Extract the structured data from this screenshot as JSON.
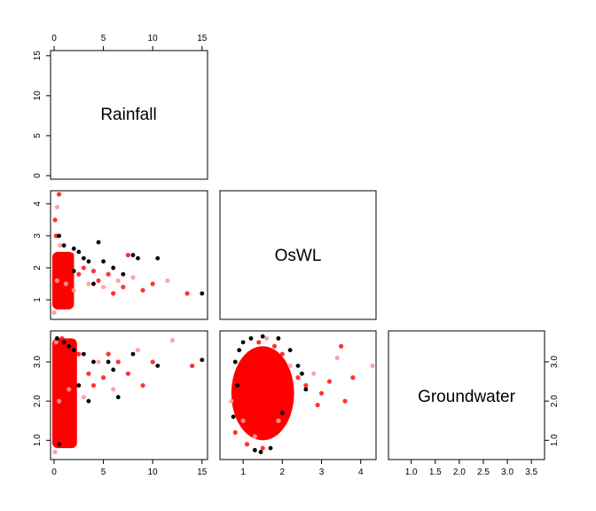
{
  "chart_data": {
    "type": "scatter",
    "kind": "pairs-plot",
    "variables": [
      "Rainfall",
      "OsWL",
      "Groundwater"
    ],
    "ranges": {
      "Rainfall": [
        0,
        15.2
      ],
      "OsWL": [
        0.5,
        4.3
      ],
      "Groundwater": [
        0.6,
        3.7
      ]
    },
    "ticks": {
      "Rainfall": [
        "0",
        "5",
        "10",
        "15"
      ],
      "OsWL": [
        "1",
        "2",
        "3",
        "4"
      ],
      "Groundwater": [
        "1.0",
        "2.0",
        "3.0"
      ],
      "GroundwaterBottom": [
        "1.0",
        "1.5",
        "2.0",
        "2.5",
        "3.0",
        "3.5"
      ]
    },
    "colors": {
      "main": "#ff0000",
      "light": "#ff9999",
      "dark": "#000000"
    },
    "panels": [
      {
        "x": "Rainfall",
        "y": "OsWL",
        "points": [
          [
            0.0,
            0.6
          ],
          [
            0.1,
            0.9
          ],
          [
            0.2,
            1.3
          ],
          [
            0.3,
            1.6
          ],
          [
            0.4,
            2.0
          ],
          [
            0.5,
            2.4
          ],
          [
            0.6,
            2.7
          ],
          [
            0.2,
            3.0
          ],
          [
            0.1,
            3.5
          ],
          [
            0.3,
            3.9
          ],
          [
            0.5,
            4.3
          ],
          [
            1.0,
            1.0
          ],
          [
            1.2,
            1.5
          ],
          [
            1.5,
            2.0
          ],
          [
            1.8,
            2.4
          ],
          [
            2.0,
            1.3
          ],
          [
            2.5,
            1.8
          ],
          [
            3.0,
            2.0
          ],
          [
            3.5,
            1.5
          ],
          [
            4.0,
            1.9
          ],
          [
            4.5,
            1.6
          ],
          [
            5.0,
            1.4
          ],
          [
            5.5,
            1.8
          ],
          [
            6.0,
            1.2
          ],
          [
            6.5,
            1.6
          ],
          [
            7.0,
            1.4
          ],
          [
            7.5,
            2.4
          ],
          [
            8.0,
            1.7
          ],
          [
            9.0,
            1.3
          ],
          [
            10.0,
            1.5
          ],
          [
            11.5,
            1.6
          ],
          [
            13.5,
            1.2
          ]
        ],
        "dark_points": [
          [
            0.5,
            3.0
          ],
          [
            1.0,
            2.7
          ],
          [
            2.0,
            2.6
          ],
          [
            2.5,
            2.5
          ],
          [
            3.0,
            2.3
          ],
          [
            4.5,
            2.8
          ],
          [
            3.5,
            2.2
          ],
          [
            5.0,
            2.2
          ],
          [
            6.0,
            2.0
          ],
          [
            7.0,
            1.8
          ],
          [
            8.0,
            2.4
          ],
          [
            8.5,
            2.3
          ],
          [
            10.5,
            2.3
          ],
          [
            15.0,
            1.2
          ],
          [
            2.0,
            1.9
          ],
          [
            4.0,
            1.5
          ]
        ]
      },
      {
        "x": "Rainfall",
        "y": "Groundwater",
        "points": [
          [
            0.1,
            0.7
          ],
          [
            0.2,
            1.0
          ],
          [
            0.3,
            1.5
          ],
          [
            0.5,
            2.0
          ],
          [
            0.6,
            2.5
          ],
          [
            0.4,
            3.0
          ],
          [
            0.2,
            3.5
          ],
          [
            0.8,
            3.6
          ],
          [
            1.0,
            1.8
          ],
          [
            1.5,
            2.3
          ],
          [
            2.0,
            2.8
          ],
          [
            2.5,
            3.2
          ],
          [
            3.0,
            2.1
          ],
          [
            3.5,
            2.7
          ],
          [
            4.0,
            2.4
          ],
          [
            4.5,
            3.0
          ],
          [
            5.0,
            2.6
          ],
          [
            5.5,
            3.2
          ],
          [
            6.0,
            2.3
          ],
          [
            6.5,
            3.0
          ],
          [
            7.5,
            2.7
          ],
          [
            8.5,
            3.3
          ],
          [
            9.0,
            2.4
          ],
          [
            10.0,
            3.0
          ],
          [
            12.0,
            3.55
          ],
          [
            14.0,
            2.9
          ]
        ],
        "dark_points": [
          [
            0.5,
            0.9
          ],
          [
            0.3,
            3.6
          ],
          [
            1.0,
            3.5
          ],
          [
            1.5,
            3.4
          ],
          [
            2.0,
            3.3
          ],
          [
            3.0,
            3.2
          ],
          [
            4.0,
            3.0
          ],
          [
            5.5,
            3.0
          ],
          [
            6.0,
            2.8
          ],
          [
            8.0,
            3.2
          ],
          [
            10.5,
            2.9
          ],
          [
            15.0,
            3.05
          ],
          [
            2.5,
            2.4
          ],
          [
            3.5,
            2.0
          ],
          [
            6.5,
            2.1
          ]
        ]
      },
      {
        "x": "OsWL",
        "y": "Groundwater",
        "points": [
          [
            0.7,
            2.0
          ],
          [
            0.8,
            1.2
          ],
          [
            0.9,
            2.6
          ],
          [
            1.0,
            1.5
          ],
          [
            1.1,
            0.9
          ],
          [
            1.2,
            3.0
          ],
          [
            1.3,
            1.1
          ],
          [
            1.4,
            3.5
          ],
          [
            1.5,
            0.8
          ],
          [
            1.6,
            3.6
          ],
          [
            1.7,
            1.2
          ],
          [
            1.8,
            3.4
          ],
          [
            1.9,
            1.5
          ],
          [
            2.0,
            3.2
          ],
          [
            2.1,
            1.8
          ],
          [
            2.2,
            2.9
          ],
          [
            2.4,
            2.6
          ],
          [
            2.6,
            2.4
          ],
          [
            2.8,
            2.7
          ],
          [
            3.0,
            2.2
          ],
          [
            3.2,
            2.5
          ],
          [
            3.4,
            3.1
          ],
          [
            3.5,
            3.4
          ],
          [
            3.8,
            2.6
          ],
          [
            4.3,
            2.9
          ],
          [
            2.9,
            1.9
          ],
          [
            3.6,
            2.0
          ]
        ],
        "dark_points": [
          [
            0.8,
            3.0
          ],
          [
            0.9,
            3.3
          ],
          [
            1.0,
            3.5
          ],
          [
            1.2,
            3.6
          ],
          [
            1.5,
            3.65
          ],
          [
            1.9,
            3.6
          ],
          [
            2.2,
            3.3
          ],
          [
            2.4,
            2.9
          ],
          [
            2.5,
            2.7
          ],
          [
            2.6,
            2.3
          ],
          [
            2.0,
            1.7
          ],
          [
            1.7,
            0.8
          ],
          [
            1.3,
            0.75
          ],
          [
            0.75,
            1.6
          ],
          [
            0.85,
            2.4
          ],
          [
            1.45,
            0.7
          ]
        ]
      }
    ]
  }
}
